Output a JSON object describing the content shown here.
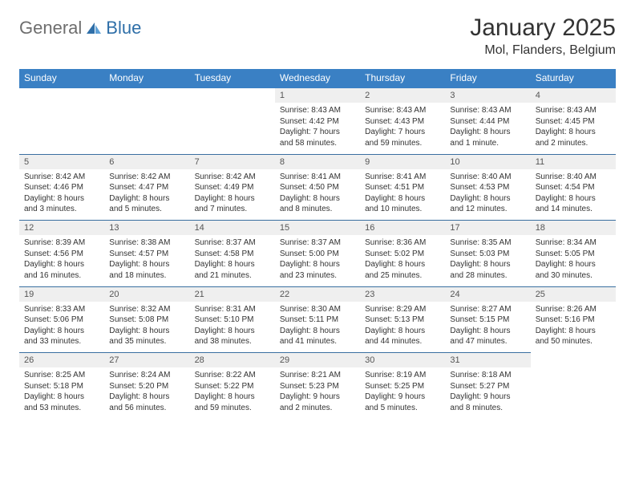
{
  "logo": {
    "text1": "General",
    "text2": "Blue"
  },
  "title": "January 2025",
  "location": "Mol, Flanders, Belgium",
  "colors": {
    "header_bg": "#3a80c4",
    "header_text": "#ffffff",
    "daynum_bg": "#efefef",
    "daynum_text": "#555555",
    "body_text": "#333333",
    "rule": "#3a6fa0",
    "logo_gray": "#6e6e6e",
    "logo_blue": "#2f6fa8"
  },
  "weekdays": [
    "Sunday",
    "Monday",
    "Tuesday",
    "Wednesday",
    "Thursday",
    "Friday",
    "Saturday"
  ],
  "weeks": [
    [
      null,
      null,
      null,
      {
        "n": "1",
        "sr": "Sunrise: 8:43 AM",
        "ss": "Sunset: 4:42 PM",
        "d1": "Daylight: 7 hours",
        "d2": "and 58 minutes."
      },
      {
        "n": "2",
        "sr": "Sunrise: 8:43 AM",
        "ss": "Sunset: 4:43 PM",
        "d1": "Daylight: 7 hours",
        "d2": "and 59 minutes."
      },
      {
        "n": "3",
        "sr": "Sunrise: 8:43 AM",
        "ss": "Sunset: 4:44 PM",
        "d1": "Daylight: 8 hours",
        "d2": "and 1 minute."
      },
      {
        "n": "4",
        "sr": "Sunrise: 8:43 AM",
        "ss": "Sunset: 4:45 PM",
        "d1": "Daylight: 8 hours",
        "d2": "and 2 minutes."
      }
    ],
    [
      {
        "n": "5",
        "sr": "Sunrise: 8:42 AM",
        "ss": "Sunset: 4:46 PM",
        "d1": "Daylight: 8 hours",
        "d2": "and 3 minutes."
      },
      {
        "n": "6",
        "sr": "Sunrise: 8:42 AM",
        "ss": "Sunset: 4:47 PM",
        "d1": "Daylight: 8 hours",
        "d2": "and 5 minutes."
      },
      {
        "n": "7",
        "sr": "Sunrise: 8:42 AM",
        "ss": "Sunset: 4:49 PM",
        "d1": "Daylight: 8 hours",
        "d2": "and 7 minutes."
      },
      {
        "n": "8",
        "sr": "Sunrise: 8:41 AM",
        "ss": "Sunset: 4:50 PM",
        "d1": "Daylight: 8 hours",
        "d2": "and 8 minutes."
      },
      {
        "n": "9",
        "sr": "Sunrise: 8:41 AM",
        "ss": "Sunset: 4:51 PM",
        "d1": "Daylight: 8 hours",
        "d2": "and 10 minutes."
      },
      {
        "n": "10",
        "sr": "Sunrise: 8:40 AM",
        "ss": "Sunset: 4:53 PM",
        "d1": "Daylight: 8 hours",
        "d2": "and 12 minutes."
      },
      {
        "n": "11",
        "sr": "Sunrise: 8:40 AM",
        "ss": "Sunset: 4:54 PM",
        "d1": "Daylight: 8 hours",
        "d2": "and 14 minutes."
      }
    ],
    [
      {
        "n": "12",
        "sr": "Sunrise: 8:39 AM",
        "ss": "Sunset: 4:56 PM",
        "d1": "Daylight: 8 hours",
        "d2": "and 16 minutes."
      },
      {
        "n": "13",
        "sr": "Sunrise: 8:38 AM",
        "ss": "Sunset: 4:57 PM",
        "d1": "Daylight: 8 hours",
        "d2": "and 18 minutes."
      },
      {
        "n": "14",
        "sr": "Sunrise: 8:37 AM",
        "ss": "Sunset: 4:58 PM",
        "d1": "Daylight: 8 hours",
        "d2": "and 21 minutes."
      },
      {
        "n": "15",
        "sr": "Sunrise: 8:37 AM",
        "ss": "Sunset: 5:00 PM",
        "d1": "Daylight: 8 hours",
        "d2": "and 23 minutes."
      },
      {
        "n": "16",
        "sr": "Sunrise: 8:36 AM",
        "ss": "Sunset: 5:02 PM",
        "d1": "Daylight: 8 hours",
        "d2": "and 25 minutes."
      },
      {
        "n": "17",
        "sr": "Sunrise: 8:35 AM",
        "ss": "Sunset: 5:03 PM",
        "d1": "Daylight: 8 hours",
        "d2": "and 28 minutes."
      },
      {
        "n": "18",
        "sr": "Sunrise: 8:34 AM",
        "ss": "Sunset: 5:05 PM",
        "d1": "Daylight: 8 hours",
        "d2": "and 30 minutes."
      }
    ],
    [
      {
        "n": "19",
        "sr": "Sunrise: 8:33 AM",
        "ss": "Sunset: 5:06 PM",
        "d1": "Daylight: 8 hours",
        "d2": "and 33 minutes."
      },
      {
        "n": "20",
        "sr": "Sunrise: 8:32 AM",
        "ss": "Sunset: 5:08 PM",
        "d1": "Daylight: 8 hours",
        "d2": "and 35 minutes."
      },
      {
        "n": "21",
        "sr": "Sunrise: 8:31 AM",
        "ss": "Sunset: 5:10 PM",
        "d1": "Daylight: 8 hours",
        "d2": "and 38 minutes."
      },
      {
        "n": "22",
        "sr": "Sunrise: 8:30 AM",
        "ss": "Sunset: 5:11 PM",
        "d1": "Daylight: 8 hours",
        "d2": "and 41 minutes."
      },
      {
        "n": "23",
        "sr": "Sunrise: 8:29 AM",
        "ss": "Sunset: 5:13 PM",
        "d1": "Daylight: 8 hours",
        "d2": "and 44 minutes."
      },
      {
        "n": "24",
        "sr": "Sunrise: 8:27 AM",
        "ss": "Sunset: 5:15 PM",
        "d1": "Daylight: 8 hours",
        "d2": "and 47 minutes."
      },
      {
        "n": "25",
        "sr": "Sunrise: 8:26 AM",
        "ss": "Sunset: 5:16 PM",
        "d1": "Daylight: 8 hours",
        "d2": "and 50 minutes."
      }
    ],
    [
      {
        "n": "26",
        "sr": "Sunrise: 8:25 AM",
        "ss": "Sunset: 5:18 PM",
        "d1": "Daylight: 8 hours",
        "d2": "and 53 minutes."
      },
      {
        "n": "27",
        "sr": "Sunrise: 8:24 AM",
        "ss": "Sunset: 5:20 PM",
        "d1": "Daylight: 8 hours",
        "d2": "and 56 minutes."
      },
      {
        "n": "28",
        "sr": "Sunrise: 8:22 AM",
        "ss": "Sunset: 5:22 PM",
        "d1": "Daylight: 8 hours",
        "d2": "and 59 minutes."
      },
      {
        "n": "29",
        "sr": "Sunrise: 8:21 AM",
        "ss": "Sunset: 5:23 PM",
        "d1": "Daylight: 9 hours",
        "d2": "and 2 minutes."
      },
      {
        "n": "30",
        "sr": "Sunrise: 8:19 AM",
        "ss": "Sunset: 5:25 PM",
        "d1": "Daylight: 9 hours",
        "d2": "and 5 minutes."
      },
      {
        "n": "31",
        "sr": "Sunrise: 8:18 AM",
        "ss": "Sunset: 5:27 PM",
        "d1": "Daylight: 9 hours",
        "d2": "and 8 minutes."
      },
      null
    ]
  ]
}
